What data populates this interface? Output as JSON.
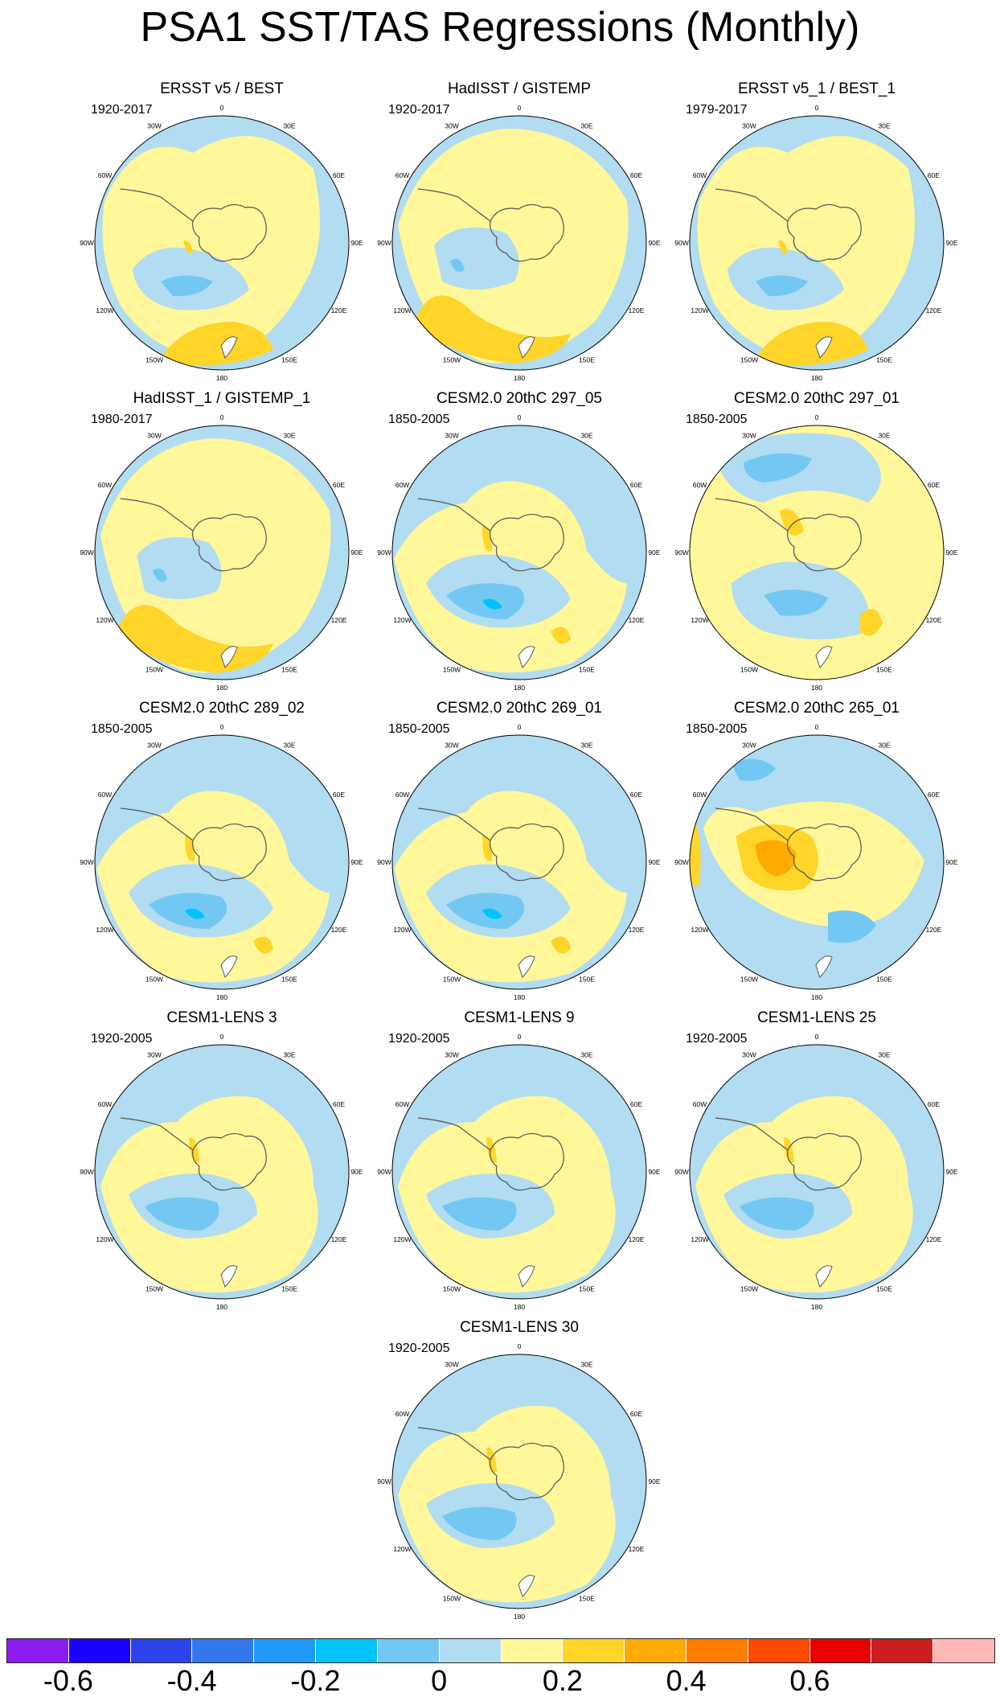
{
  "title": "PSA1 SST/TAS Regressions (Monthly)",
  "lon_labels": [
    "0",
    "30E",
    "60E",
    "90E",
    "120E",
    "150E",
    "180",
    "150W",
    "120W",
    "90W",
    "60W",
    "30W"
  ],
  "panels": [
    {
      "title": "ERSST v5 / BEST",
      "years": "1920-2017",
      "style": "obs"
    },
    {
      "title": "HadISST / GISTEMP",
      "years": "1920-2017",
      "style": "obs2"
    },
    {
      "title": "ERSST v5_1 / BEST_1",
      "years": "1979-2017",
      "style": "obs"
    },
    {
      "title": "HadISST_1 / GISTEMP_1",
      "years": "1980-2017",
      "style": "obs2"
    },
    {
      "title": "CESM2.0 20thC 297_05",
      "years": "1850-2005",
      "style": "model"
    },
    {
      "title": "CESM2.0 20thC 297_01",
      "years": "1850-2005",
      "style": "model2"
    },
    {
      "title": "CESM2.0 20thC 289_02",
      "years": "1850-2005",
      "style": "model"
    },
    {
      "title": "CESM2.0 20thC 269_01",
      "years": "1850-2005",
      "style": "model"
    },
    {
      "title": "CESM2.0 20thC 265_01",
      "years": "1850-2005",
      "style": "model3"
    },
    {
      "title": "CESM1-LENS 3",
      "years": "1920-2005",
      "style": "lens"
    },
    {
      "title": "CESM1-LENS 9",
      "years": "1920-2005",
      "style": "lens"
    },
    {
      "title": "CESM1-LENS 25",
      "years": "1920-2005",
      "style": "lens"
    },
    {
      "title": "CESM1-LENS 30",
      "years": "1920-2005",
      "style": "lens"
    }
  ],
  "colorbar": {
    "colors": [
      "#8a1cf0",
      "#1a00ff",
      "#2d44ea",
      "#3377ec",
      "#1f99f6",
      "#00c3f9",
      "#72c8f2",
      "#b1dcf1",
      "#fff79a",
      "#ffd52a",
      "#ffaa00",
      "#ff7d00",
      "#ff4a00",
      "#ea0000",
      "#cc1e1e",
      "#ffb6b6"
    ],
    "labels": [
      "-0.6",
      "-0.4",
      "-0.2",
      "0",
      "0.2",
      "0.4",
      "0.6"
    ]
  }
}
